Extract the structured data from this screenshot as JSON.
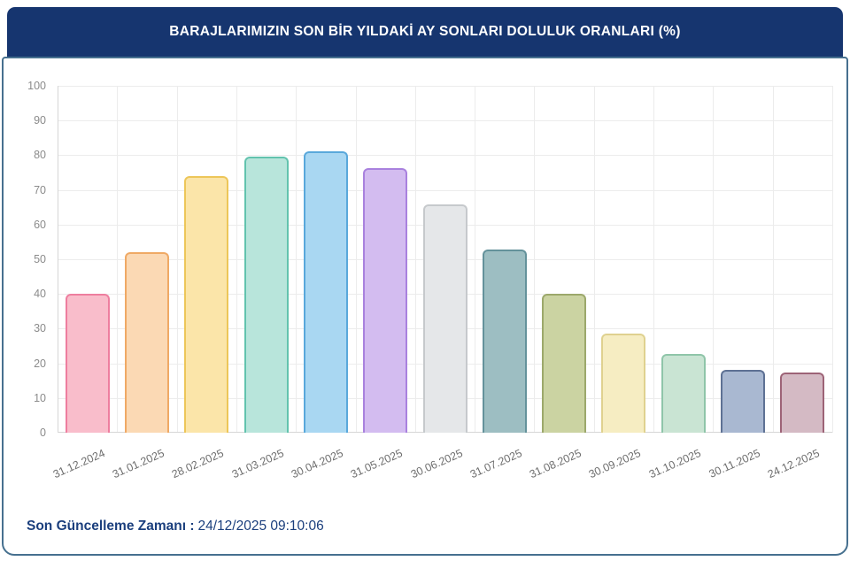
{
  "header": {
    "title": "BARAJLARIMIZIN SON BİR YILDAKİ AY SONLARI DOLULUK ORANLARI (%)"
  },
  "footer": {
    "label": "Son Güncelleme Zamanı :",
    "value": "24/12/2025 09:10:06"
  },
  "colors": {
    "header_bg": "#16356F",
    "card_border": "#46708F",
    "footer_text": "#1B3F7D",
    "grid": "#ECECEC",
    "axis": "#D6D6D6",
    "tick_text": "#8B8B8B",
    "label_text": "#6E6E6E"
  },
  "chart_data": {
    "type": "bar",
    "title": "BARAJLARIMIZIN SON BİR YILDAKİ AY SONLARI DOLULUK ORANLARI (%)",
    "xlabel": "",
    "ylabel": "",
    "ylim": [
      0,
      100
    ],
    "yticks": [
      0,
      10,
      20,
      30,
      40,
      50,
      60,
      70,
      80,
      90,
      100
    ],
    "grid": true,
    "legend_position": "none",
    "categories": [
      "31.12.2024",
      "31.01.2025",
      "28.02.2025",
      "31.03.2025",
      "30.04.2025",
      "31.05.2025",
      "30.06.2025",
      "31.07.2025",
      "31.08.2025",
      "30.09.2025",
      "31.10.2025",
      "30.11.2025",
      "24.12.2025"
    ],
    "values": [
      40.0,
      52.1,
      74.0,
      79.6,
      81.0,
      76.2,
      65.7,
      52.7,
      40.1,
      28.5,
      22.6,
      18.1,
      17.3
    ],
    "bar_colors": [
      {
        "fill": "#F9BDCB",
        "border": "#EE7E9F"
      },
      {
        "fill": "#FBD9B4",
        "border": "#EFA965"
      },
      {
        "fill": "#FBE5A9",
        "border": "#EDC659"
      },
      {
        "fill": "#B8E5DB",
        "border": "#62C3AE"
      },
      {
        "fill": "#A9D7F2",
        "border": "#59A8DB"
      },
      {
        "fill": "#D3BCF0",
        "border": "#A981DE"
      },
      {
        "fill": "#E5E7E9",
        "border": "#C6C9CC"
      },
      {
        "fill": "#9DBEC2",
        "border": "#64929B"
      },
      {
        "fill": "#CBD3A2",
        "border": "#9CA86B"
      },
      {
        "fill": "#F6EDC2",
        "border": "#DFD18F"
      },
      {
        "fill": "#C9E4D3",
        "border": "#8FC5A9"
      },
      {
        "fill": "#A9B8D1",
        "border": "#5E7194"
      },
      {
        "fill": "#D4BAC4",
        "border": "#9D6377"
      }
    ]
  }
}
